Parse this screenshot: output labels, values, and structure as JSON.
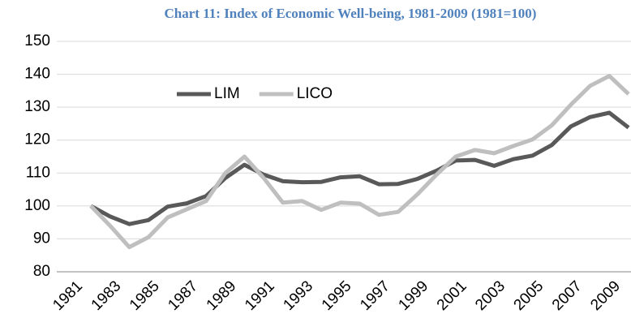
{
  "chart_data": {
    "type": "line",
    "title": "Chart 11: Index of Economic Well-being, 1981-2009 (1981=100)",
    "categories": [
      "1981",
      null,
      "1983",
      null,
      "1985",
      null,
      "1987",
      null,
      "1989",
      null,
      "1991",
      null,
      "1993",
      null,
      "1995",
      null,
      "1997",
      null,
      "1999",
      null,
      "2001",
      null,
      "2003",
      null,
      "2005",
      null,
      "2007",
      null,
      "2009"
    ],
    "series": [
      {
        "name": "LIM",
        "color": "#595959",
        "values": [
          100,
          96.8,
          94.5,
          95.7,
          99.8,
          100.8,
          103,
          108.5,
          112.5,
          109.5,
          107.5,
          107.2,
          107.3,
          108.7,
          109,
          106.6,
          106.7,
          108.2,
          110.7,
          113.8,
          114,
          112.2,
          114.2,
          115.3,
          118.5,
          124.2,
          127,
          128.3,
          123.8
        ]
      },
      {
        "name": "LICO",
        "color": "#bfbfbf",
        "values": [
          100,
          94,
          87.5,
          90.5,
          96.5,
          99,
          101.5,
          110,
          115,
          108.5,
          101,
          101.5,
          98.8,
          101,
          100.7,
          97.3,
          98.2,
          103.5,
          109.5,
          115,
          117,
          116,
          118.2,
          120.2,
          124.5,
          130.8,
          136.5,
          139.5,
          134
        ]
      }
    ],
    "ylim": [
      80,
      150
    ],
    "yticks": [
      80,
      90,
      100,
      110,
      120,
      130,
      140,
      150
    ],
    "grid": true,
    "legend": "top-left"
  }
}
